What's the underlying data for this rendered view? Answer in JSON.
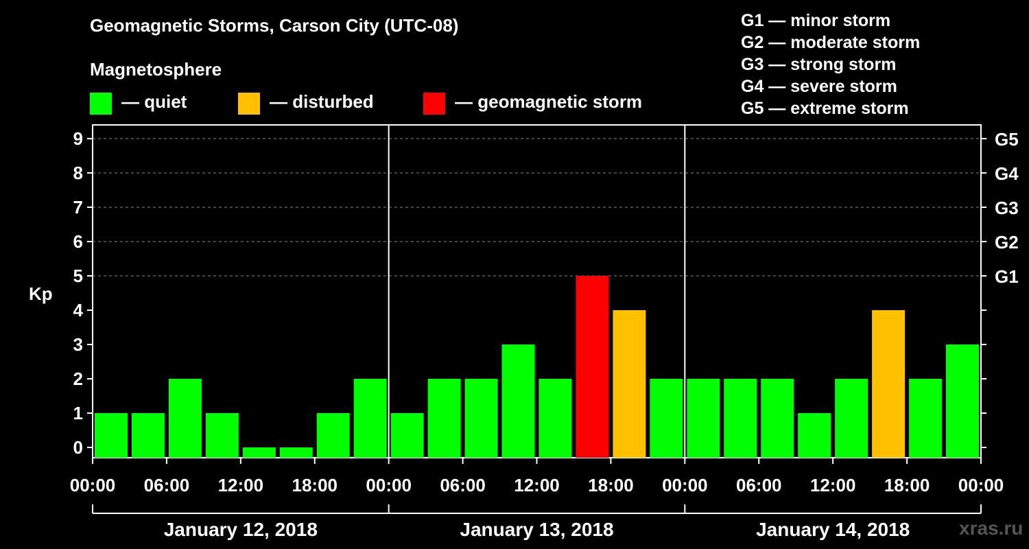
{
  "title": "Geomagnetic Storms, Carson City (UTC-08)",
  "legend": {
    "heading": "Magnetosphere",
    "items": [
      {
        "label": "— quiet",
        "color": "#00ff00"
      },
      {
        "label": "— disturbed",
        "color": "#ffc000"
      },
      {
        "label": "— geomagnetic storm",
        "color": "#ff0000"
      }
    ]
  },
  "storm_scale": [
    "G1 — minor storm",
    "G2 — moderate storm",
    "G3 — strong storm",
    "G4 — severe storm",
    "G5 — extreme storm"
  ],
  "watermark": "xras.ru",
  "chart_data": {
    "type": "bar",
    "ylabel": "Kp",
    "ylim": [
      0,
      9
    ],
    "y_ticks": [
      "0",
      "1",
      "2",
      "3",
      "4",
      "5",
      "6",
      "7",
      "8",
      "9"
    ],
    "right_ticks": [
      {
        "kp": 5,
        "label": "G1"
      },
      {
        "kp": 6,
        "label": "G2"
      },
      {
        "kp": 7,
        "label": "G3"
      },
      {
        "kp": 8,
        "label": "G4"
      },
      {
        "kp": 9,
        "label": "G5"
      }
    ],
    "x_tick_labels": [
      "00:00",
      "06:00",
      "12:00",
      "18:00",
      "00:00",
      "06:00",
      "12:00",
      "18:00",
      "00:00",
      "06:00",
      "12:00",
      "18:00",
      "00:00"
    ],
    "days": [
      "January 12, 2018",
      "January 13, 2018",
      "January 14, 2018"
    ],
    "grid": "horizontal dashed",
    "x": [
      "Jan 12 00:00",
      "Jan 12 03:00",
      "Jan 12 06:00",
      "Jan 12 09:00",
      "Jan 12 12:00",
      "Jan 12 15:00",
      "Jan 12 18:00",
      "Jan 12 21:00",
      "Jan 13 00:00",
      "Jan 13 03:00",
      "Jan 13 06:00",
      "Jan 13 09:00",
      "Jan 13 12:00",
      "Jan 13 15:00",
      "Jan 13 18:00",
      "Jan 13 21:00",
      "Jan 14 00:00",
      "Jan 14 03:00",
      "Jan 14 06:00",
      "Jan 14 09:00",
      "Jan 14 12:00",
      "Jan 14 15:00",
      "Jan 14 18:00",
      "Jan 14 21:00"
    ],
    "values": [
      1,
      1,
      2,
      1,
      0,
      0,
      1,
      2,
      1,
      2,
      2,
      3,
      2,
      5,
      4,
      2,
      2,
      2,
      2,
      1,
      2,
      4,
      2,
      3
    ],
    "colors": {
      "quiet": "#00ff00",
      "disturbed": "#ffc000",
      "storm": "#ff0000"
    }
  }
}
